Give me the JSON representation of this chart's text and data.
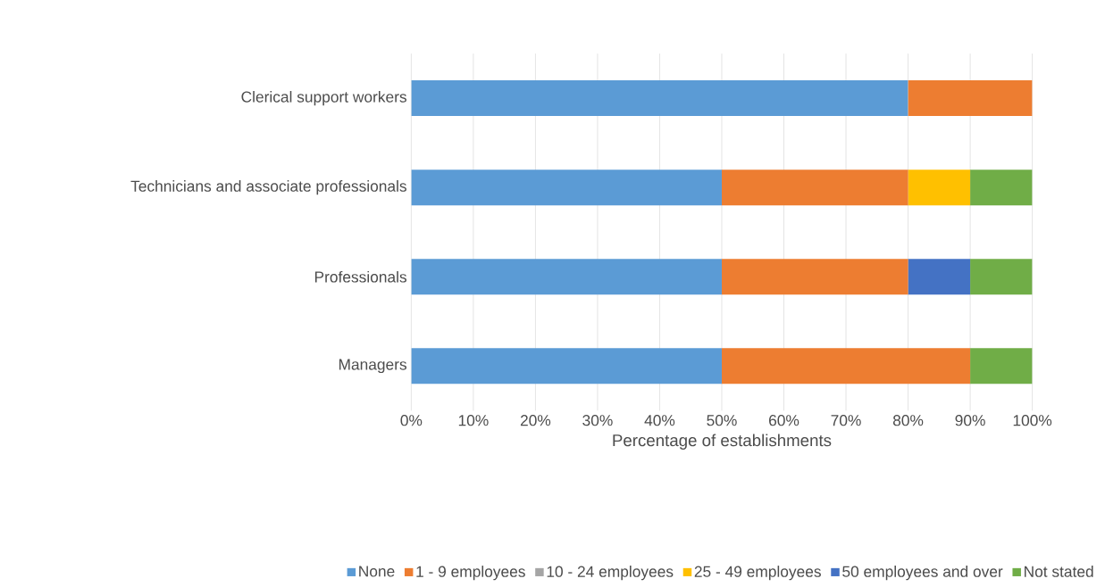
{
  "chart_data": {
    "type": "bar",
    "orientation": "horizontal",
    "stacked": true,
    "categories": [
      "Clerical support workers",
      "Technicians and associate professionals",
      "Professionals",
      "Managers"
    ],
    "series": [
      {
        "name": "None",
        "color": "#5b9bd5",
        "values": [
          80,
          50,
          50,
          50
        ]
      },
      {
        "name": "1 - 9 employees",
        "color": "#ed7d31",
        "values": [
          20,
          30,
          30,
          40
        ]
      },
      {
        "name": "10 - 24 employees",
        "color": "#a5a5a5",
        "values": [
          0,
          0,
          0,
          0
        ]
      },
      {
        "name": "25 - 49 employees",
        "color": "#ffc000",
        "values": [
          0,
          10,
          0,
          0
        ]
      },
      {
        "name": "50 employees and over",
        "color": "#4472c4",
        "values": [
          0,
          0,
          10,
          0
        ]
      },
      {
        "name": "Not stated",
        "color": "#70ad47",
        "values": [
          0,
          10,
          10,
          10
        ]
      }
    ],
    "xlabel": "Percentage of establishments",
    "xlim": [
      0,
      100
    ],
    "xticks": [
      {
        "value": 0,
        "label": "0%"
      },
      {
        "value": 10,
        "label": "10%"
      },
      {
        "value": 20,
        "label": "20%"
      },
      {
        "value": 30,
        "label": "30%"
      },
      {
        "value": 40,
        "label": "40%"
      },
      {
        "value": 50,
        "label": "50%"
      },
      {
        "value": 60,
        "label": "60%"
      },
      {
        "value": 70,
        "label": "70%"
      },
      {
        "value": 80,
        "label": "80%"
      },
      {
        "value": 90,
        "label": "90%"
      },
      {
        "value": 100,
        "label": "100%"
      }
    ],
    "grid": "x",
    "legend": "bottom"
  }
}
